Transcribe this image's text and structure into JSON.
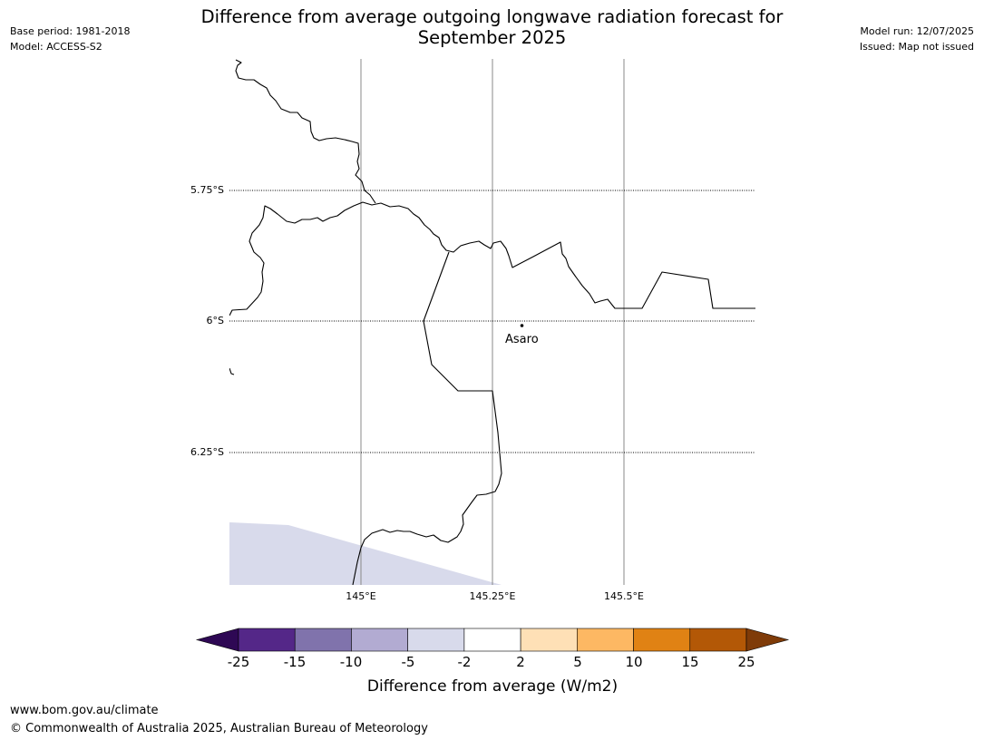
{
  "header": {
    "base_period": "Base period: 1981-2018",
    "model": "Model: ACCESS-S2",
    "model_run": "Model run: 12/07/2025",
    "issued": "Issued: Map not issued"
  },
  "title": {
    "line1": "Difference from average outgoing longwave radiation forecast for",
    "line2": "September 2025"
  },
  "map": {
    "lat_labels": [
      "5.75°S",
      "6°S",
      "6.25°S"
    ],
    "lon_labels": [
      "145°E",
      "145.25°E",
      "145.5°E"
    ],
    "place": {
      "name": "Asaro"
    }
  },
  "colorbar": {
    "tick_labels": [
      "-25",
      "-15",
      "-10",
      "-5",
      "-2",
      "2",
      "5",
      "10",
      "15",
      "25"
    ],
    "colors": {
      "below_min": "#2e0854",
      "bins": [
        "#542788",
        "#8073ac",
        "#b2abd2",
        "#d8daeb",
        "#ffffff",
        "#fee0b6",
        "#fdb863",
        "#e08214",
        "#b35806"
      ],
      "above_max": "#7f3b08"
    },
    "label": "Difference from average (W/m2)"
  },
  "footer": {
    "url": "www.bom.gov.au/climate",
    "copyright": "© Commonwealth of Australia 2025, Australian Bureau of Meteorology"
  }
}
